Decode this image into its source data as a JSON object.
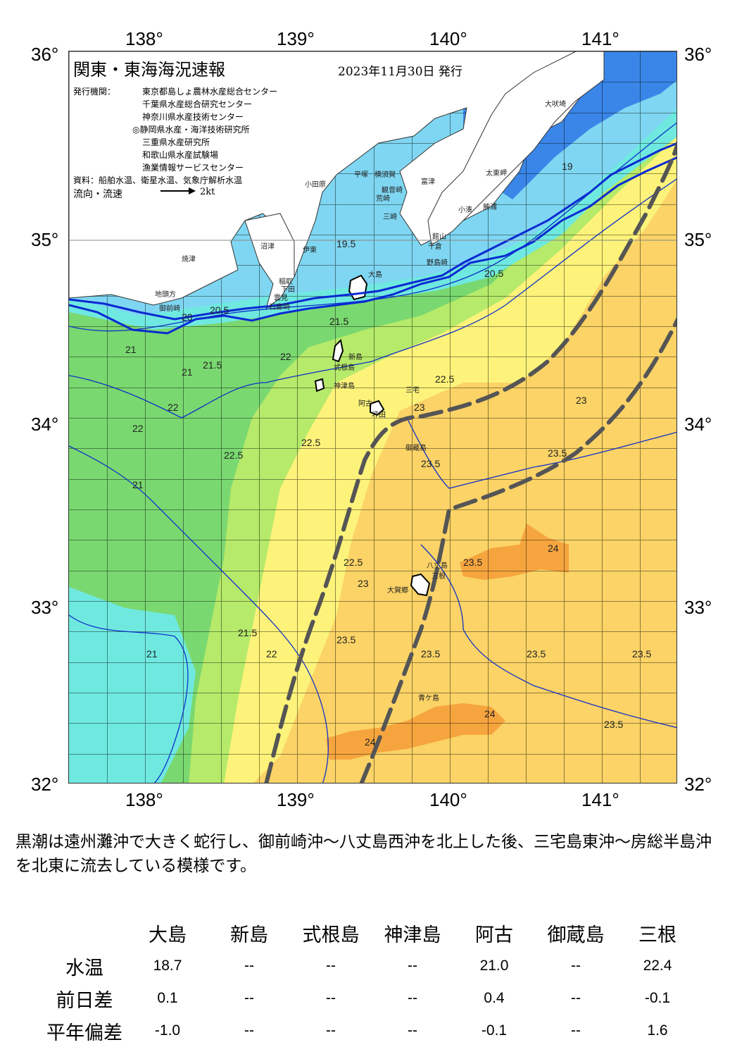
{
  "map": {
    "title": "関東・東海海況速報",
    "issue_date": "2023年11月30日 発行",
    "publisher_label": "発行機関：",
    "publishers": [
      "東京都島しょ農林水産総合センター",
      "千葉県水産総合研究センター",
      "神奈川県水産技術センター",
      "◎静岡県水産・海洋技術研究所",
      "三重県水産研究所",
      "和歌山県水産試験場",
      "漁業情報サービスセンター"
    ],
    "sources": "資料：船舶水温、衛星水温、気象庁解析水温",
    "flow_legend": "流向・流速",
    "flow_scale": "2kt",
    "lon_labels": [
      "138°",
      "139°",
      "140°",
      "141°"
    ],
    "lat_labels": [
      "36°",
      "35°",
      "34°",
      "33°",
      "32°"
    ],
    "colors": {
      "cold": "#3a86e8",
      "cool": "#7fd6f2",
      "cyan": "#6fe9e0",
      "green": "#7ad870",
      "lightgreen": "#b6ea6a",
      "yellow": "#fdf37a",
      "lightorange": "#fbd366",
      "orange": "#f6a53e",
      "contour": "#1030c8",
      "kuroshio": "#555555"
    },
    "place_names": [
      "大吠埼",
      "太東岬",
      "勝浦",
      "小湊",
      "館山",
      "千倉",
      "野島崎",
      "富津",
      "観音崎",
      "横須賀",
      "荒崎",
      "三崎",
      "平塚",
      "小田原",
      "沼津",
      "伊東",
      "焼津",
      "地頭方",
      "御前崎",
      "稲取",
      "下田",
      "雲見",
      "石廊崎",
      "大島",
      "新島",
      "式根島",
      "神津島",
      "三宅",
      "阿古",
      "坪田",
      "御蔵島",
      "八丈島",
      "大賀郷",
      "三根",
      "青ケ島"
    ],
    "isotherm_labels": [
      "19",
      "19.5",
      "20",
      "20.5",
      "21",
      "21.5",
      "22",
      "22.5",
      "23",
      "23.5",
      "24"
    ]
  },
  "summary": "黒潮は遠州灘沖で大きく蛇行し、御前崎沖～八丈島西沖を北上した後、三宅島東沖～房総半島沖を北東に流去している模様です。",
  "table": {
    "headers": [
      "",
      "大島",
      "新島",
      "式根島",
      "神津島",
      "阿古",
      "御蔵島",
      "三根"
    ],
    "rows": [
      {
        "label": "水温",
        "values": [
          "18.7",
          "--",
          "--",
          "--",
          "21.0",
          "--",
          "22.4"
        ]
      },
      {
        "label": "前日差",
        "values": [
          "0.1",
          "--",
          "--",
          "--",
          "0.4",
          "--",
          "-0.1"
        ]
      },
      {
        "label": "平年偏差",
        "values": [
          "-1.0",
          "--",
          "--",
          "--",
          "-0.1",
          "--",
          "1.6"
        ]
      }
    ]
  }
}
